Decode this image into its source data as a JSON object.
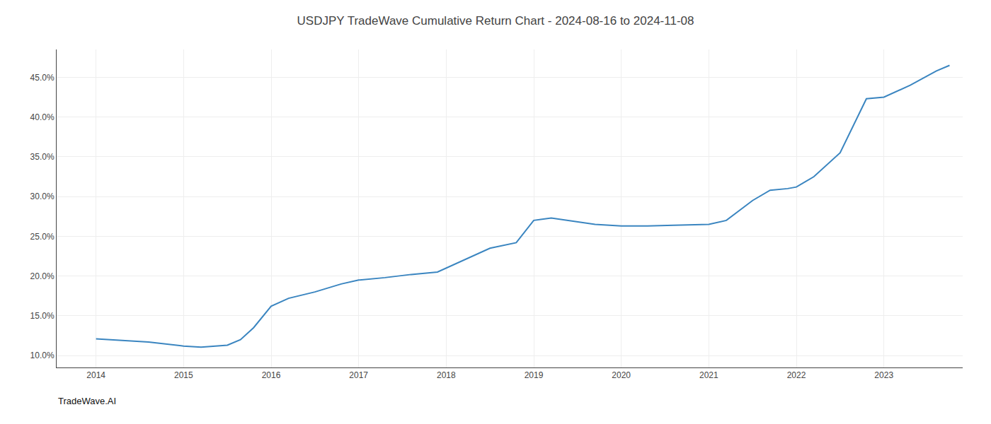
{
  "chart_data": {
    "type": "line",
    "title": "USDJPY TradeWave Cumulative Return Chart - 2024-08-16 to 2024-11-08",
    "annotations": [
      "TradeWave.AI"
    ],
    "x": [
      2014.0,
      2014.3,
      2014.6,
      2015.0,
      2015.2,
      2015.5,
      2015.65,
      2015.8,
      2016.0,
      2016.2,
      2016.5,
      2016.8,
      2017.0,
      2017.3,
      2017.6,
      2017.9,
      2018.0,
      2018.3,
      2018.5,
      2018.8,
      2019.0,
      2019.2,
      2019.5,
      2019.7,
      2020.0,
      2020.3,
      2020.6,
      2020.9,
      2021.0,
      2021.2,
      2021.5,
      2021.7,
      2021.9,
      2022.0,
      2022.2,
      2022.5,
      2022.8,
      2023.0,
      2023.3,
      2023.6,
      2023.75
    ],
    "values": [
      12.1,
      11.9,
      11.7,
      11.2,
      11.05,
      11.3,
      12.0,
      13.5,
      16.2,
      17.2,
      18.0,
      19.0,
      19.5,
      19.8,
      20.2,
      20.5,
      21.0,
      22.5,
      23.5,
      24.2,
      27.0,
      27.3,
      26.8,
      26.5,
      26.3,
      26.3,
      26.4,
      26.5,
      26.5,
      27.0,
      29.5,
      30.8,
      31.0,
      31.2,
      32.5,
      35.5,
      42.3,
      42.5,
      44.0,
      45.8,
      46.5
    ],
    "color": "#3a85c0",
    "xlim": [
      2013.55,
      2023.9
    ],
    "ylim": [
      8.5,
      48.5
    ],
    "xticks": [
      2014,
      2015,
      2016,
      2017,
      2018,
      2019,
      2020,
      2021,
      2022,
      2023
    ],
    "yticks": [
      {
        "value": 10.0,
        "label": "10.0%"
      },
      {
        "value": 15.0,
        "label": "15.0%"
      },
      {
        "value": 20.0,
        "label": "20.0%"
      },
      {
        "value": 25.0,
        "label": "25.0%"
      },
      {
        "value": 30.0,
        "label": "30.0%"
      },
      {
        "value": 35.0,
        "label": "35.0%"
      },
      {
        "value": 40.0,
        "label": "40.0%"
      },
      {
        "value": 45.0,
        "label": "45.0%"
      }
    ],
    "grid": true
  }
}
